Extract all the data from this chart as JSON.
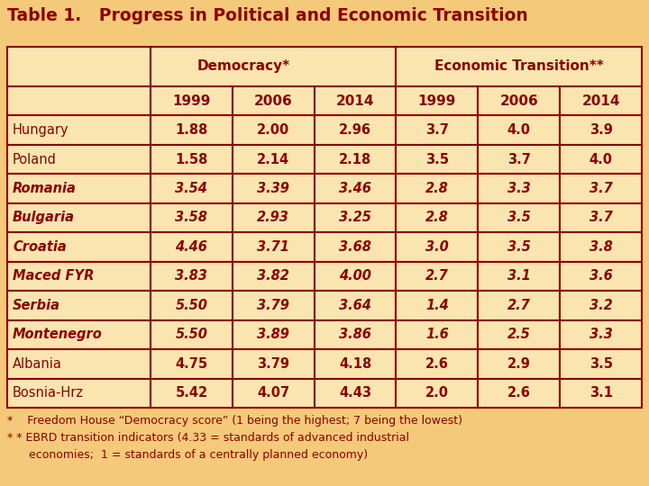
{
  "title": "Table 1.   Progress in Political and Economic Transition",
  "title_color": "#8B0000",
  "background_color": "#F5C97A",
  "table_bg_color": "#FAE5B0",
  "border_color": "#8B0000",
  "text_color": "#8B0000",
  "header1": [
    "Democracy*",
    "Economic Transition**"
  ],
  "header2": [
    "1999",
    "2006",
    "2014",
    "1999",
    "2006",
    "2014"
  ],
  "countries": [
    "Hungary",
    "Poland",
    "Romania",
    "Bulgaria",
    "Croatia",
    "Maced FYR",
    "Serbia",
    "Montenegro",
    "Albania",
    "Bosnia-Hrz"
  ],
  "italic_bold": [
    false,
    false,
    true,
    true,
    true,
    true,
    true,
    true,
    false,
    false
  ],
  "data": [
    [
      1.88,
      2.0,
      2.96,
      3.7,
      4.0,
      3.9
    ],
    [
      1.58,
      2.14,
      2.18,
      3.5,
      3.7,
      4.0
    ],
    [
      3.54,
      3.39,
      3.46,
      2.8,
      3.3,
      3.7
    ],
    [
      3.58,
      2.93,
      3.25,
      2.8,
      3.5,
      3.7
    ],
    [
      4.46,
      3.71,
      3.68,
      3.0,
      3.5,
      3.8
    ],
    [
      3.83,
      3.82,
      4.0,
      2.7,
      3.1,
      3.6
    ],
    [
      5.5,
      3.79,
      3.64,
      1.4,
      2.7,
      3.2
    ],
    [
      5.5,
      3.89,
      3.86,
      1.6,
      2.5,
      3.3
    ],
    [
      4.75,
      3.79,
      4.18,
      2.6,
      2.9,
      3.5
    ],
    [
      5.42,
      4.07,
      4.43,
      2.0,
      2.6,
      3.1
    ]
  ],
  "footnote1": "*    Freedom House “Democracy score” (1 being the highest; 7 being the lowest)",
  "footnote2": "* * EBRD transition indicators (4.33 = standards of advanced industrial",
  "footnote3": "      economies;  1 = standards of a centrally planned economy)",
  "title_fontsize": 13.5,
  "header_fontsize": 11,
  "data_fontsize": 10.5,
  "footnote_fontsize": 9.0
}
